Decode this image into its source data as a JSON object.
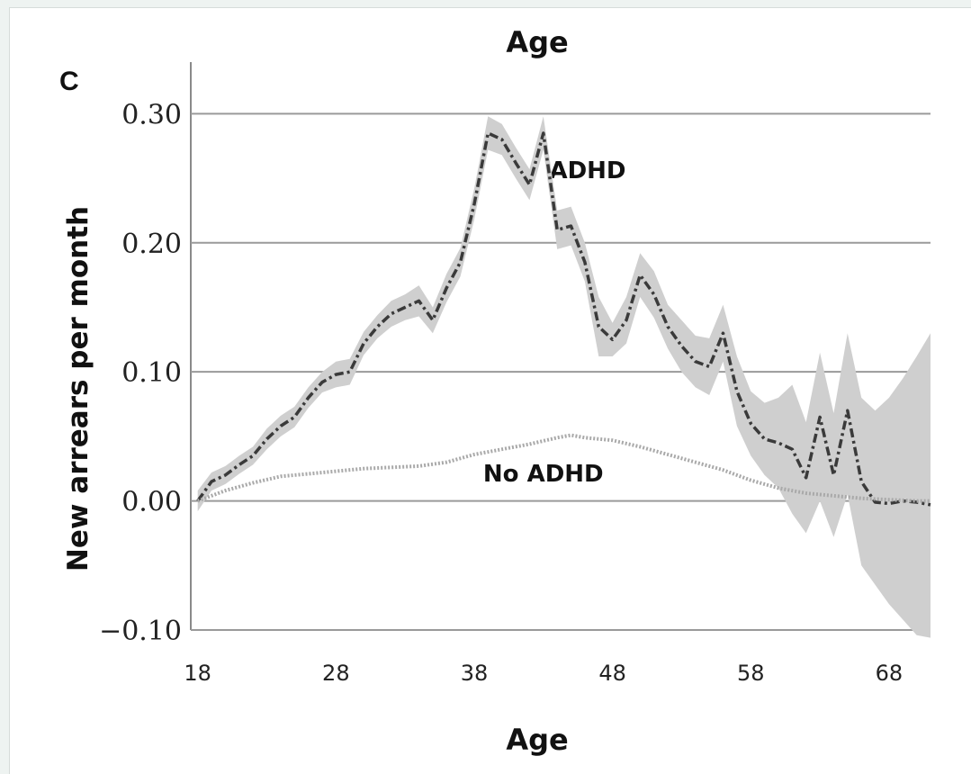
{
  "chart_data": {
    "type": "line",
    "panel_label": "C",
    "title": "Age",
    "xlabel": "Age",
    "ylabel": "New arrears per month",
    "x_ticks": [
      "18",
      "28",
      "38",
      "48",
      "58",
      "68"
    ],
    "y_ticks": [
      "0.30",
      "0.20",
      "0.10",
      "0.00",
      "−0.10"
    ],
    "y_tick_values": [
      0.3,
      0.2,
      0.1,
      0.0,
      -0.1
    ],
    "x_tick_values": [
      18,
      28,
      38,
      48,
      58,
      68
    ],
    "xlim": [
      17.5,
      71
    ],
    "ylim": [
      -0.1,
      0.34
    ],
    "grid": "horizontal",
    "colors": {
      "adhd_line": "#3a3a3a",
      "no_adhd_line": "#a9a9a9",
      "band": "#cfcfcf",
      "grid": "#9a9a9a"
    },
    "annotations": [
      {
        "text": "ADHD",
        "x": 46.2,
        "y": 0.25
      },
      {
        "text": "No ADHD",
        "x": 43.0,
        "y": 0.015
      }
    ],
    "series": [
      {
        "name": "ADHD",
        "style": "dash-dot",
        "x": [
          18,
          19,
          20,
          21,
          22,
          23,
          24,
          25,
          26,
          27,
          28,
          29,
          30,
          31,
          32,
          33,
          34,
          35,
          36,
          37,
          38,
          39,
          40,
          41,
          42,
          43,
          44,
          45,
          46,
          47,
          48,
          49,
          50,
          51,
          52,
          53,
          54,
          55,
          56,
          57,
          58,
          59,
          60,
          61,
          62,
          63,
          64,
          65,
          66,
          67,
          68,
          69,
          70,
          71
        ],
        "y": [
          0.0,
          0.015,
          0.02,
          0.028,
          0.035,
          0.048,
          0.058,
          0.065,
          0.08,
          0.092,
          0.098,
          0.1,
          0.122,
          0.135,
          0.145,
          0.15,
          0.155,
          0.14,
          0.165,
          0.185,
          0.23,
          0.285,
          0.28,
          0.262,
          0.245,
          0.285,
          0.21,
          0.213,
          0.185,
          0.135,
          0.125,
          0.14,
          0.175,
          0.16,
          0.135,
          0.12,
          0.108,
          0.104,
          0.13,
          0.085,
          0.06,
          0.048,
          0.045,
          0.04,
          0.018,
          0.065,
          0.02,
          0.07,
          0.015,
          -0.001,
          -0.002,
          0.0,
          -0.001,
          -0.003
        ],
        "lower": [
          -0.008,
          0.008,
          0.013,
          0.021,
          0.028,
          0.04,
          0.05,
          0.057,
          0.072,
          0.084,
          0.088,
          0.09,
          0.113,
          0.126,
          0.135,
          0.14,
          0.143,
          0.13,
          0.154,
          0.174,
          0.218,
          0.272,
          0.268,
          0.25,
          0.233,
          0.272,
          0.195,
          0.198,
          0.17,
          0.112,
          0.112,
          0.122,
          0.158,
          0.142,
          0.118,
          0.1,
          0.088,
          0.082,
          0.108,
          0.058,
          0.035,
          0.02,
          0.01,
          -0.01,
          -0.025,
          0.0,
          -0.028,
          0.005,
          -0.05,
          -0.065,
          -0.08,
          -0.092,
          -0.104,
          -0.106
        ],
        "upper": [
          0.008,
          0.022,
          0.027,
          0.035,
          0.042,
          0.056,
          0.066,
          0.073,
          0.088,
          0.1,
          0.108,
          0.11,
          0.131,
          0.144,
          0.155,
          0.16,
          0.167,
          0.15,
          0.176,
          0.196,
          0.242,
          0.298,
          0.292,
          0.274,
          0.257,
          0.298,
          0.225,
          0.228,
          0.2,
          0.158,
          0.138,
          0.158,
          0.192,
          0.178,
          0.152,
          0.14,
          0.128,
          0.126,
          0.152,
          0.112,
          0.085,
          0.076,
          0.08,
          0.09,
          0.061,
          0.115,
          0.068,
          0.13,
          0.08,
          0.07,
          0.08,
          0.095,
          0.112,
          0.13
        ]
      },
      {
        "name": "No ADHD",
        "style": "dotted",
        "x": [
          18,
          20,
          22,
          24,
          26,
          28,
          30,
          32,
          34,
          36,
          38,
          40,
          42,
          44,
          45,
          46,
          48,
          50,
          52,
          54,
          56,
          58,
          60,
          62,
          64,
          66,
          68,
          70,
          71
        ],
        "y": [
          0.0,
          0.008,
          0.014,
          0.019,
          0.021,
          0.023,
          0.025,
          0.026,
          0.027,
          0.03,
          0.036,
          0.04,
          0.044,
          0.049,
          0.051,
          0.049,
          0.047,
          0.042,
          0.036,
          0.03,
          0.024,
          0.016,
          0.01,
          0.006,
          0.004,
          0.002,
          0.001,
          0.0,
          0.0
        ]
      }
    ]
  }
}
